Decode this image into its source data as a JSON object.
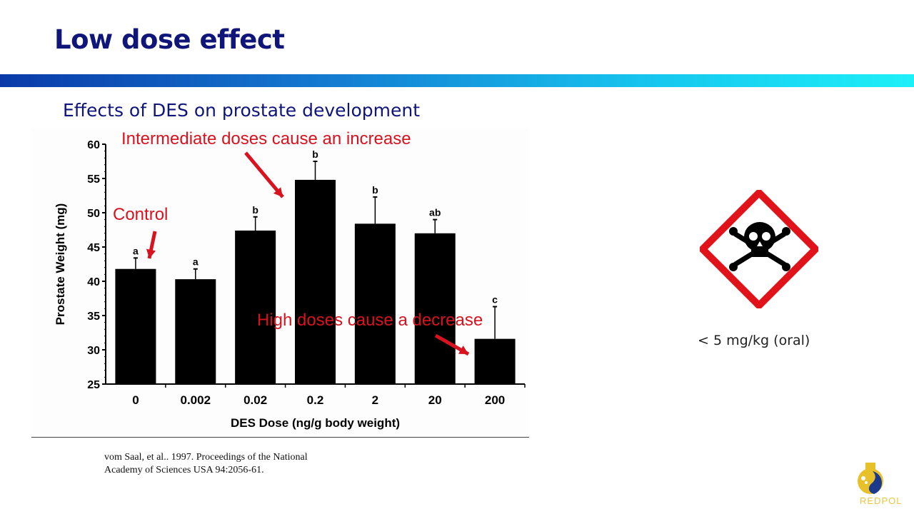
{
  "slide": {
    "title": "Low dose effect",
    "subtitle": "Effects of DES on prostate development",
    "citation_line1": "vom Saal, et al.. 1997. Proceedings of the National",
    "citation_line2": "Academy of Sciences USA 94:2056-61.",
    "hazard_icon": "skull-crossbones-icon",
    "hazard_color": "#e0131a",
    "dose_label": "< 5 mg/kg (oral)",
    "logo_text": "REDPOL"
  },
  "chart_data": {
    "type": "bar",
    "title": "",
    "xlabel": "DES Dose (ng/g body weight)",
    "ylabel": "Prostate Weight (mg)",
    "categories": [
      "0",
      "0.002",
      "0.02",
      "0.2",
      "2",
      "20",
      "200"
    ],
    "values": [
      41.8,
      40.3,
      47.4,
      54.8,
      48.4,
      47.0,
      31.6
    ],
    "error_upper": [
      1.6,
      1.5,
      2.0,
      2.7,
      3.9,
      2.0,
      4.7
    ],
    "group_labels": [
      "a",
      "a",
      "b",
      "b",
      "b",
      "ab",
      "c"
    ],
    "ylim": [
      25,
      60
    ],
    "yticks": [
      25,
      30,
      35,
      40,
      45,
      50,
      55,
      60
    ],
    "bar_color": "#000000",
    "grid": false,
    "annotations": [
      {
        "text": "Control",
        "target": "0"
      },
      {
        "text": "Intermediate doses cause an increase",
        "target": "0.2"
      },
      {
        "text": "High doses cause a decrease",
        "target": "200"
      }
    ],
    "annotation_color": "#d8121e"
  }
}
